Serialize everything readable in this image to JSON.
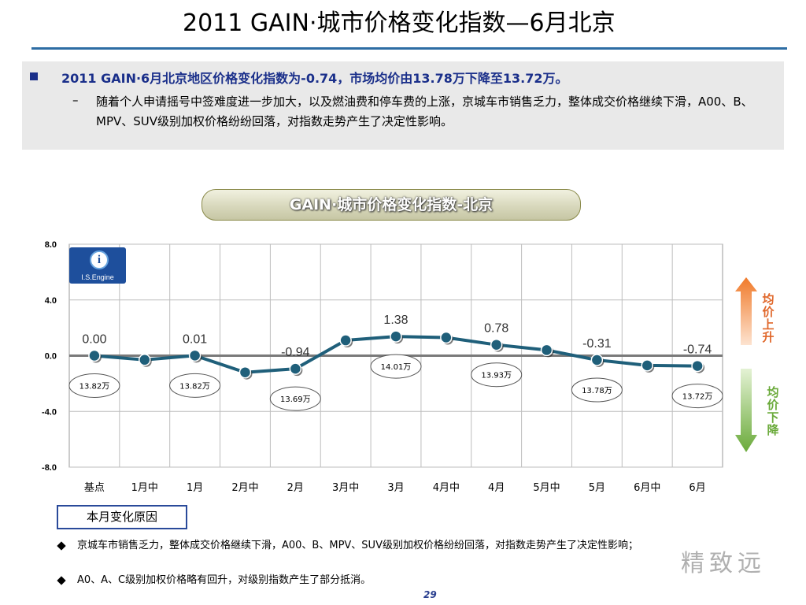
{
  "page": {
    "title": "2011 GAIN·城市价格变化指数—6月北京",
    "page_number": "29",
    "watermark": "精致远"
  },
  "summary": {
    "main": "2011 GAIN·6月北京地区价格变化指数为-0.74，市场均价由13.78万下降至13.72万。",
    "sub": "随着个人申请摇号中签难度进一步加大，以及燃油费和停车费的上涨，京城车市销售乏力，整体成交价格继续下滑，A00、B、MPV、SUV级别加权价格纷纷回落，对指数走势产生了决定性影响。"
  },
  "chart_heading": "GAIN·城市价格变化指数-北京",
  "logo": {
    "text": "I.S.Engine",
    "icon": "i-globe-logo"
  },
  "side_labels": {
    "up": "均价上升",
    "down": "均价下降",
    "up_color": "#e0672a",
    "down_color": "#6aaa3a"
  },
  "chart_data": {
    "type": "line",
    "categories": [
      "基点",
      "1月中",
      "1月",
      "2月中",
      "2月",
      "3月中",
      "3月",
      "4月中",
      "4月",
      "5月中",
      "5月",
      "6月中",
      "6月"
    ],
    "values": [
      0.0,
      -0.3,
      0.01,
      -1.2,
      -0.94,
      1.1,
      1.38,
      1.3,
      0.78,
      0.4,
      -0.31,
      -0.7,
      -0.74
    ],
    "value_labels": [
      {
        "index": 0,
        "text": "0.00"
      },
      {
        "index": 2,
        "text": "0.01"
      },
      {
        "index": 4,
        "text": "-0.94"
      },
      {
        "index": 6,
        "text": "1.38"
      },
      {
        "index": 8,
        "text": "0.78"
      },
      {
        "index": 10,
        "text": "-0.31"
      },
      {
        "index": 12,
        "text": "-0.74"
      }
    ],
    "price_labels": [
      {
        "index": 0,
        "text": "13.82万"
      },
      {
        "index": 2,
        "text": "13.82万"
      },
      {
        "index": 4,
        "text": "13.69万"
      },
      {
        "index": 6,
        "text": "14.01万"
      },
      {
        "index": 8,
        "text": "13.93万"
      },
      {
        "index": 10,
        "text": "13.78万"
      },
      {
        "index": 12,
        "text": "13.72万"
      }
    ],
    "y_ticks": [
      "8.0",
      "4.0",
      "0.0",
      "-4.0",
      "-8.0"
    ],
    "ylim": [
      -8,
      8
    ],
    "grid": true,
    "line_color": "#1f5f7a",
    "marker_color": "#1f5f7a"
  },
  "reasons": {
    "heading": "本月变化原因",
    "items": [
      "京城车市销售乏力，整体成交价格继续下滑，A00、B、MPV、SUV级别加权价格纷纷回落，对指数走势产生了决定性影响；",
      "A0、A、C级别加权价格略有回升，对级别指数产生了部分抵消。"
    ]
  }
}
